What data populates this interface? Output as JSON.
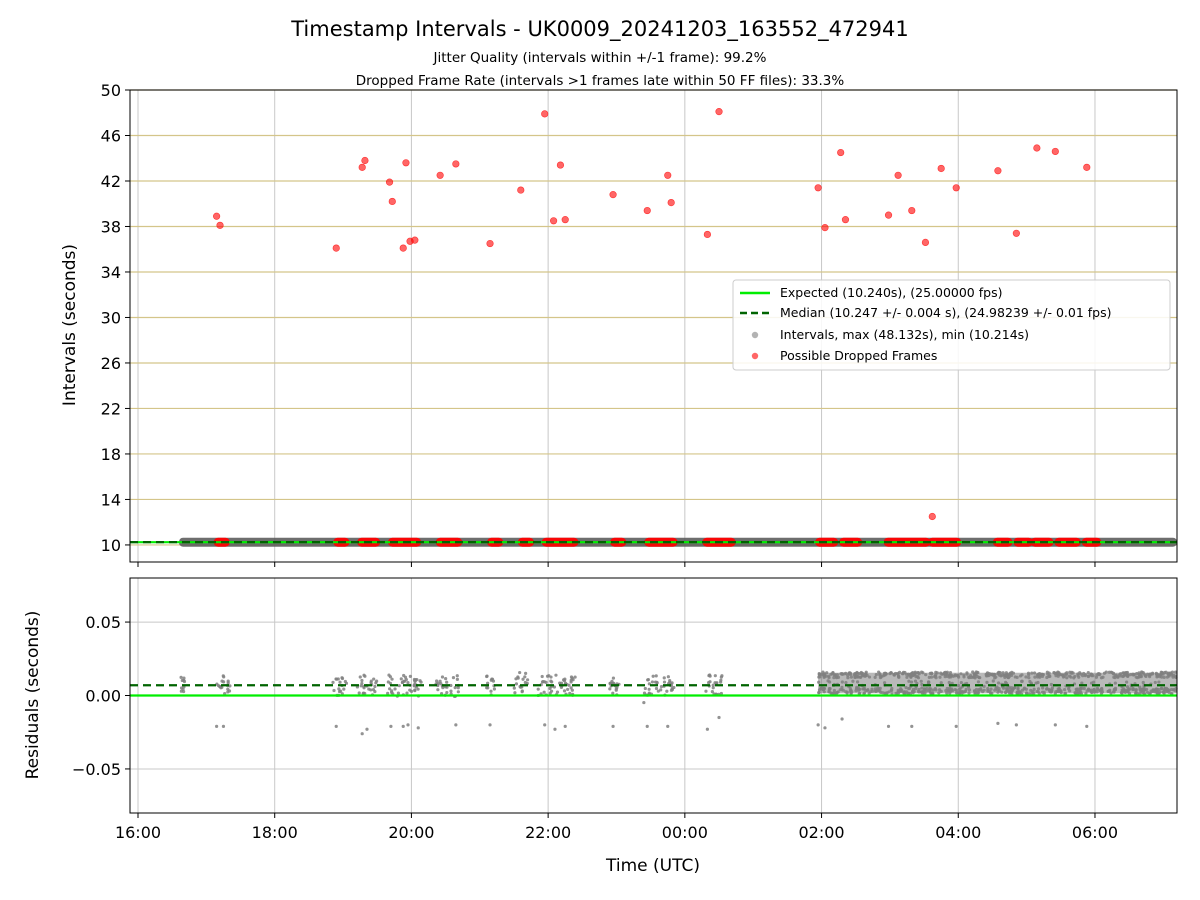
{
  "chart_data": [
    {
      "type": "scatter",
      "title": "Timestamp Intervals - UK0009_20241203_163552_472941",
      "subtitle_lines": [
        "Jitter Quality (intervals within +/-1 frame): 99.2%",
        "Dropped Frame Rate (intervals >1 frames late within 50 FF files): 33.3%"
      ],
      "ylabel": "Intervals (seconds)",
      "xlim_hours": [
        15.883,
        31.2
      ],
      "ylim": [
        8.5,
        50
      ],
      "yticks": [
        10,
        14,
        18,
        22,
        26,
        30,
        34,
        38,
        42,
        46,
        50
      ],
      "grid": "horizontal gold lines at y ticks, vertical grey lines at x ticks",
      "expected_line": 10.24,
      "median_line": 10.247,
      "interval_band": {
        "x_start_hours": 16.6,
        "x_end_hours": 31.2,
        "y": 10.24
      },
      "legend": {
        "placement": "center-right",
        "entries": [
          "Expected (10.240s), (25.00000 fps)",
          "Median (10.247 +/- 0.004 s), (24.98239 +/- 0.01 fps)",
          "Intervals, max (48.132s), min (10.214s)",
          "Possible Dropped Frames"
        ]
      },
      "dropped_frame_clusters_near_10": [
        [
          17.15,
          17.3
        ],
        [
          18.9,
          19.05
        ],
        [
          19.25,
          19.5
        ],
        [
          19.7,
          20.1
        ],
        [
          20.4,
          20.7
        ],
        [
          21.15,
          21.3
        ],
        [
          21.6,
          21.75
        ],
        [
          21.95,
          22.4
        ],
        [
          22.95,
          23.1
        ],
        [
          23.45,
          23.85
        ],
        [
          24.3,
          24.7
        ],
        [
          25.95,
          26.2
        ],
        [
          26.3,
          26.55
        ],
        [
          26.95,
          27.55
        ],
        [
          27.6,
          28.0
        ],
        [
          28.55,
          28.75
        ],
        [
          28.85,
          29.05
        ],
        [
          29.1,
          29.35
        ],
        [
          29.45,
          29.75
        ],
        [
          29.85,
          30.05
        ]
      ],
      "dropped_frames": [
        {
          "x": 17.15,
          "y": 38.9
        },
        {
          "x": 17.2,
          "y": 38.1
        },
        {
          "x": 18.9,
          "y": 36.1
        },
        {
          "x": 19.28,
          "y": 43.2
        },
        {
          "x": 19.32,
          "y": 43.8
        },
        {
          "x": 19.68,
          "y": 41.9
        },
        {
          "x": 19.72,
          "y": 40.2
        },
        {
          "x": 19.88,
          "y": 36.1
        },
        {
          "x": 19.92,
          "y": 43.6
        },
        {
          "x": 19.98,
          "y": 36.7
        },
        {
          "x": 20.05,
          "y": 36.8
        },
        {
          "x": 20.42,
          "y": 42.5
        },
        {
          "x": 20.65,
          "y": 43.5
        },
        {
          "x": 21.15,
          "y": 36.5
        },
        {
          "x": 21.6,
          "y": 41.2
        },
        {
          "x": 21.95,
          "y": 47.9
        },
        {
          "x": 22.08,
          "y": 38.5
        },
        {
          "x": 22.18,
          "y": 43.4
        },
        {
          "x": 22.25,
          "y": 38.6
        },
        {
          "x": 22.95,
          "y": 40.8
        },
        {
          "x": 23.45,
          "y": 39.4
        },
        {
          "x": 23.75,
          "y": 42.5
        },
        {
          "x": 23.8,
          "y": 40.1
        },
        {
          "x": 24.33,
          "y": 37.3
        },
        {
          "x": 24.5,
          "y": 48.1
        },
        {
          "x": 25.95,
          "y": 41.4
        },
        {
          "x": 26.05,
          "y": 37.9
        },
        {
          "x": 26.28,
          "y": 44.5
        },
        {
          "x": 26.35,
          "y": 38.6
        },
        {
          "x": 26.98,
          "y": 39.0
        },
        {
          "x": 27.12,
          "y": 42.5
        },
        {
          "x": 27.32,
          "y": 39.4
        },
        {
          "x": 27.52,
          "y": 36.6
        },
        {
          "x": 27.62,
          "y": 12.5
        },
        {
          "x": 27.75,
          "y": 43.1
        },
        {
          "x": 27.97,
          "y": 41.4
        },
        {
          "x": 28.58,
          "y": 42.9
        },
        {
          "x": 28.85,
          "y": 37.4
        },
        {
          "x": 29.15,
          "y": 44.9
        },
        {
          "x": 29.42,
          "y": 44.6
        },
        {
          "x": 29.88,
          "y": 43.2
        }
      ]
    },
    {
      "type": "scatter",
      "xlabel": "Time (UTC)",
      "ylabel": "Residuals (seconds)",
      "xlim_hours": [
        15.883,
        31.2
      ],
      "ylim": [
        -0.08,
        0.08
      ],
      "yticks": [
        -0.05,
        0.0,
        0.05
      ],
      "ytick_labels": [
        "−0.05",
        "0.00",
        "0.05"
      ],
      "xticks_hours": [
        16,
        18,
        20,
        22,
        24,
        26,
        28,
        30
      ],
      "xtick_labels": [
        "16:00",
        "18:00",
        "20:00",
        "22:00",
        "00:00",
        "02:00",
        "04:00",
        "06:00"
      ],
      "grid": "grey lines at x and y ticks",
      "expected_residual": 0.0,
      "median_residual": 0.007,
      "sparse_clusters": [
        [
          16.62,
          16.68
        ],
        [
          17.15,
          17.35
        ],
        [
          18.85,
          19.05
        ],
        [
          19.2,
          19.5
        ],
        [
          19.65,
          20.15
        ],
        [
          20.35,
          20.7
        ],
        [
          21.1,
          21.25
        ],
        [
          21.5,
          21.7
        ],
        [
          21.85,
          22.4
        ],
        [
          22.9,
          23.1
        ],
        [
          23.4,
          23.85
        ],
        [
          24.3,
          24.55
        ]
      ],
      "dense_band_hours": [
        25.95,
        31.2
      ],
      "outliers": [
        {
          "x": 17.15,
          "y": -0.021
        },
        {
          "x": 17.25,
          "y": -0.021
        },
        {
          "x": 18.9,
          "y": -0.021
        },
        {
          "x": 19.28,
          "y": -0.026
        },
        {
          "x": 19.35,
          "y": -0.023
        },
        {
          "x": 19.7,
          "y": -0.021
        },
        {
          "x": 19.88,
          "y": -0.021
        },
        {
          "x": 19.95,
          "y": -0.02
        },
        {
          "x": 20.1,
          "y": -0.022
        },
        {
          "x": 20.65,
          "y": -0.02
        },
        {
          "x": 21.15,
          "y": -0.02
        },
        {
          "x": 21.95,
          "y": -0.02
        },
        {
          "x": 22.1,
          "y": -0.023
        },
        {
          "x": 22.25,
          "y": -0.021
        },
        {
          "x": 22.95,
          "y": -0.021
        },
        {
          "x": 23.45,
          "y": -0.021
        },
        {
          "x": 23.75,
          "y": -0.021
        },
        {
          "x": 24.33,
          "y": -0.023
        },
        {
          "x": 24.5,
          "y": -0.015
        },
        {
          "x": 25.95,
          "y": -0.02
        },
        {
          "x": 26.05,
          "y": -0.022
        },
        {
          "x": 26.3,
          "y": -0.016
        },
        {
          "x": 26.98,
          "y": -0.021
        },
        {
          "x": 27.32,
          "y": -0.021
        },
        {
          "x": 27.97,
          "y": -0.021
        },
        {
          "x": 28.58,
          "y": -0.019
        },
        {
          "x": 28.85,
          "y": -0.02
        },
        {
          "x": 29.42,
          "y": -0.02
        },
        {
          "x": 29.88,
          "y": -0.021
        }
      ]
    }
  ],
  "colors": {
    "expected": "#00ee00",
    "median": "#006400",
    "intervals": "#808080",
    "dropped": "#ff0000",
    "hgrid_top": "#d4c58a",
    "grid": "#c8c8c8",
    "band": "#555555"
  }
}
